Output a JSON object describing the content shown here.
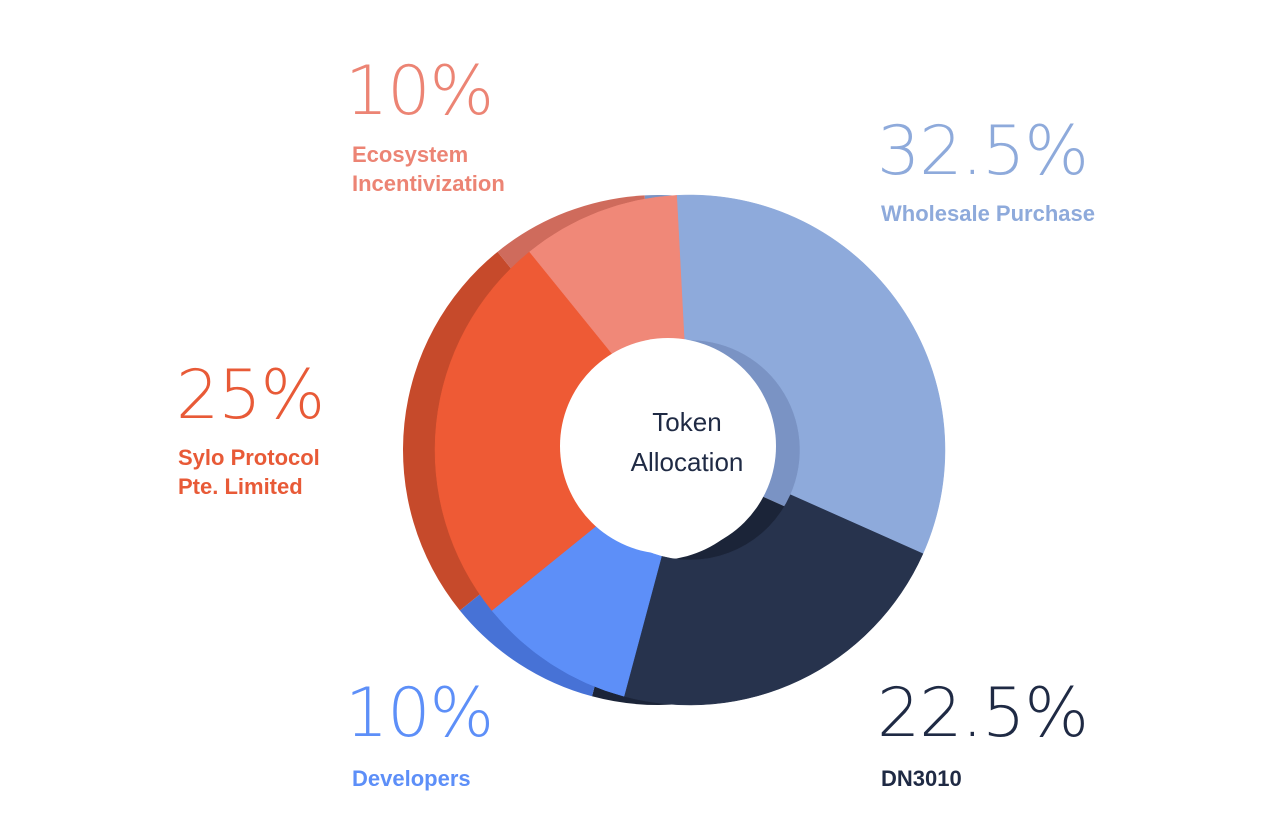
{
  "chart_data": {
    "type": "pie",
    "variant": "donut",
    "title": "Token Allocation",
    "slices": [
      {
        "label": "Wholesale Purchase",
        "value": 32.5,
        "value_label": "32.5%",
        "color": "#8eaadb",
        "side_color": "#7a93c4"
      },
      {
        "label": "DN3010",
        "value": 22.5,
        "value_label": "22.5%",
        "color": "#27334d",
        "side_color": "#1b2438"
      },
      {
        "label": "Developers",
        "value": 10,
        "value_label": "10%",
        "color": "#5d8ff8",
        "side_color": "#4772d6"
      },
      {
        "label": "Sylo Protocol\nPte. Limited",
        "value": 25,
        "value_label": "25%",
        "color": "#ee5a35",
        "side_color": "#c64a2b"
      },
      {
        "label": "Ecosystem\nIncentivization",
        "value": 10,
        "value_label": "10%",
        "color": "#f08878",
        "side_color": "#cf6b5c"
      }
    ],
    "label_colors": {
      "wholesale": "#8eaadb",
      "dn3010": "#1f2a44",
      "developers": "#5d8ff8",
      "sylo": "#e85a37",
      "ecosystem": "#ec8474"
    },
    "center_label": [
      "Token",
      "Allocation"
    ],
    "center_text_color": "#1f2a44"
  }
}
